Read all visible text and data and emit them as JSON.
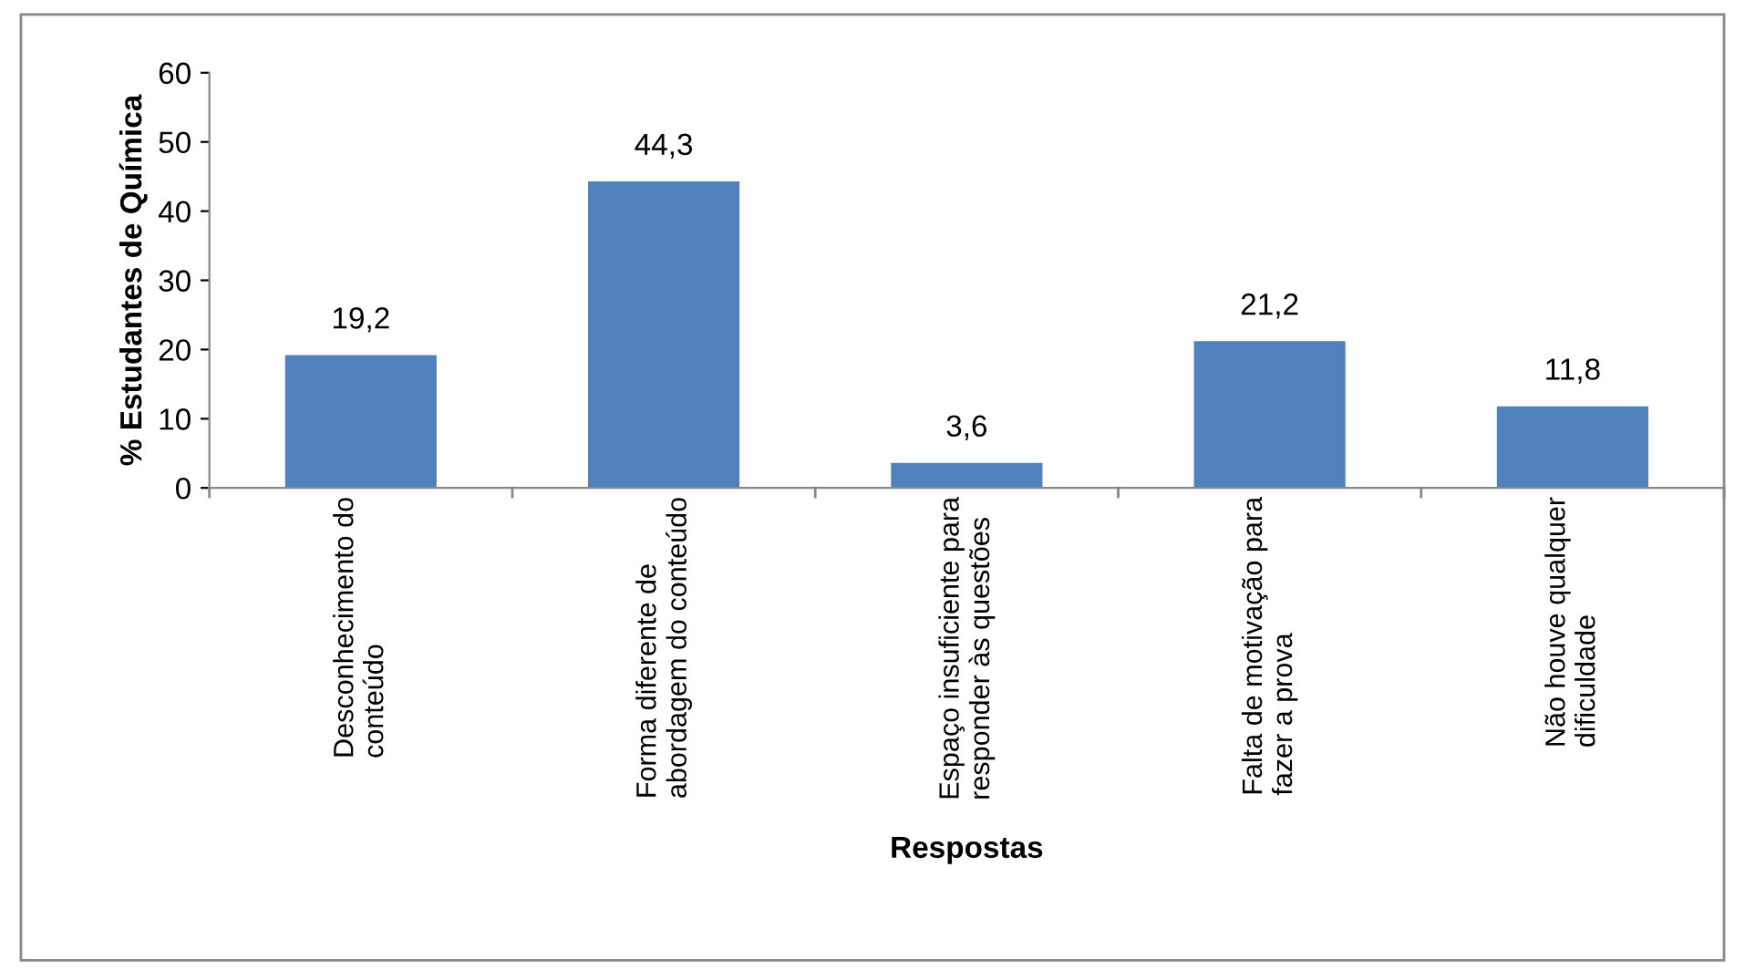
{
  "chart_data": {
    "type": "bar",
    "xlabel": "Respostas",
    "ylabel": "% Estudantes de Química",
    "categories": [
      "Desconhecimento do\nconteúdo",
      "Forma diferente de\nabordagem do conteúdo",
      "Espaço insuficiente para\nresponder às questões",
      "Falta de motivação para\nfazer a prova",
      "Não houve qualquer\ndificuldade"
    ],
    "values": [
      19.2,
      44.3,
      3.6,
      21.2,
      11.8
    ],
    "value_labels": [
      "19,2",
      "44,3",
      "3,6",
      "21,2",
      "11,8"
    ],
    "color": "#4f81bd",
    "ylim": [
      0,
      60
    ],
    "yticks": [
      0,
      10,
      20,
      30,
      40,
      50,
      60
    ],
    "grid": false,
    "legend": false
  }
}
